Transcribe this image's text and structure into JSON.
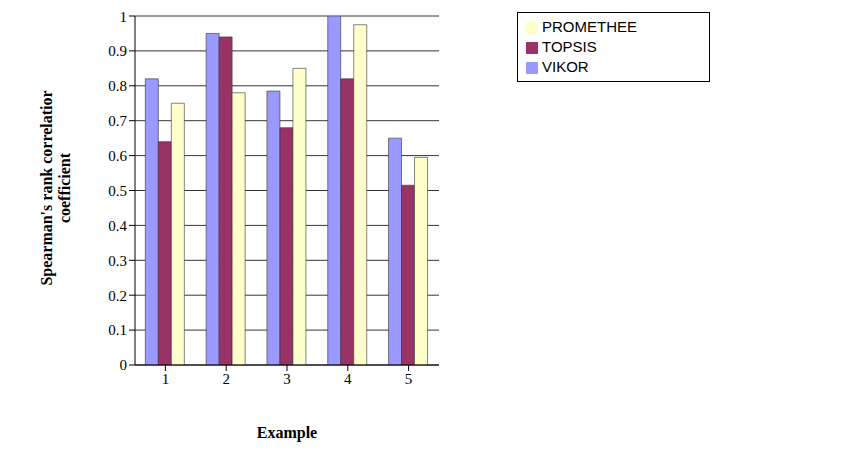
{
  "chart_data": {
    "type": "bar",
    "x_label": "Example",
    "y_label": "Spearman's rank correlatior coefficient",
    "categories": [
      "1",
      "2",
      "3",
      "4",
      "5"
    ],
    "series": [
      {
        "name": "VIKOR",
        "color": "#9999FF",
        "values": [
          0.82,
          0.95,
          0.785,
          1.0,
          0.65
        ]
      },
      {
        "name": "TOPSIS",
        "color": "#993366",
        "values": [
          0.64,
          0.94,
          0.68,
          0.82,
          0.515
        ]
      },
      {
        "name": "PROMETHEE",
        "color": "#FFFFCC",
        "values": [
          0.75,
          0.78,
          0.85,
          0.975,
          0.595
        ]
      }
    ],
    "ylim": [
      0,
      1
    ],
    "yticks": [
      0,
      0.1,
      0.2,
      0.3,
      0.4,
      0.5,
      0.6,
      0.7,
      0.8,
      0.9,
      1
    ],
    "grid": true,
    "legend": "upper right"
  }
}
